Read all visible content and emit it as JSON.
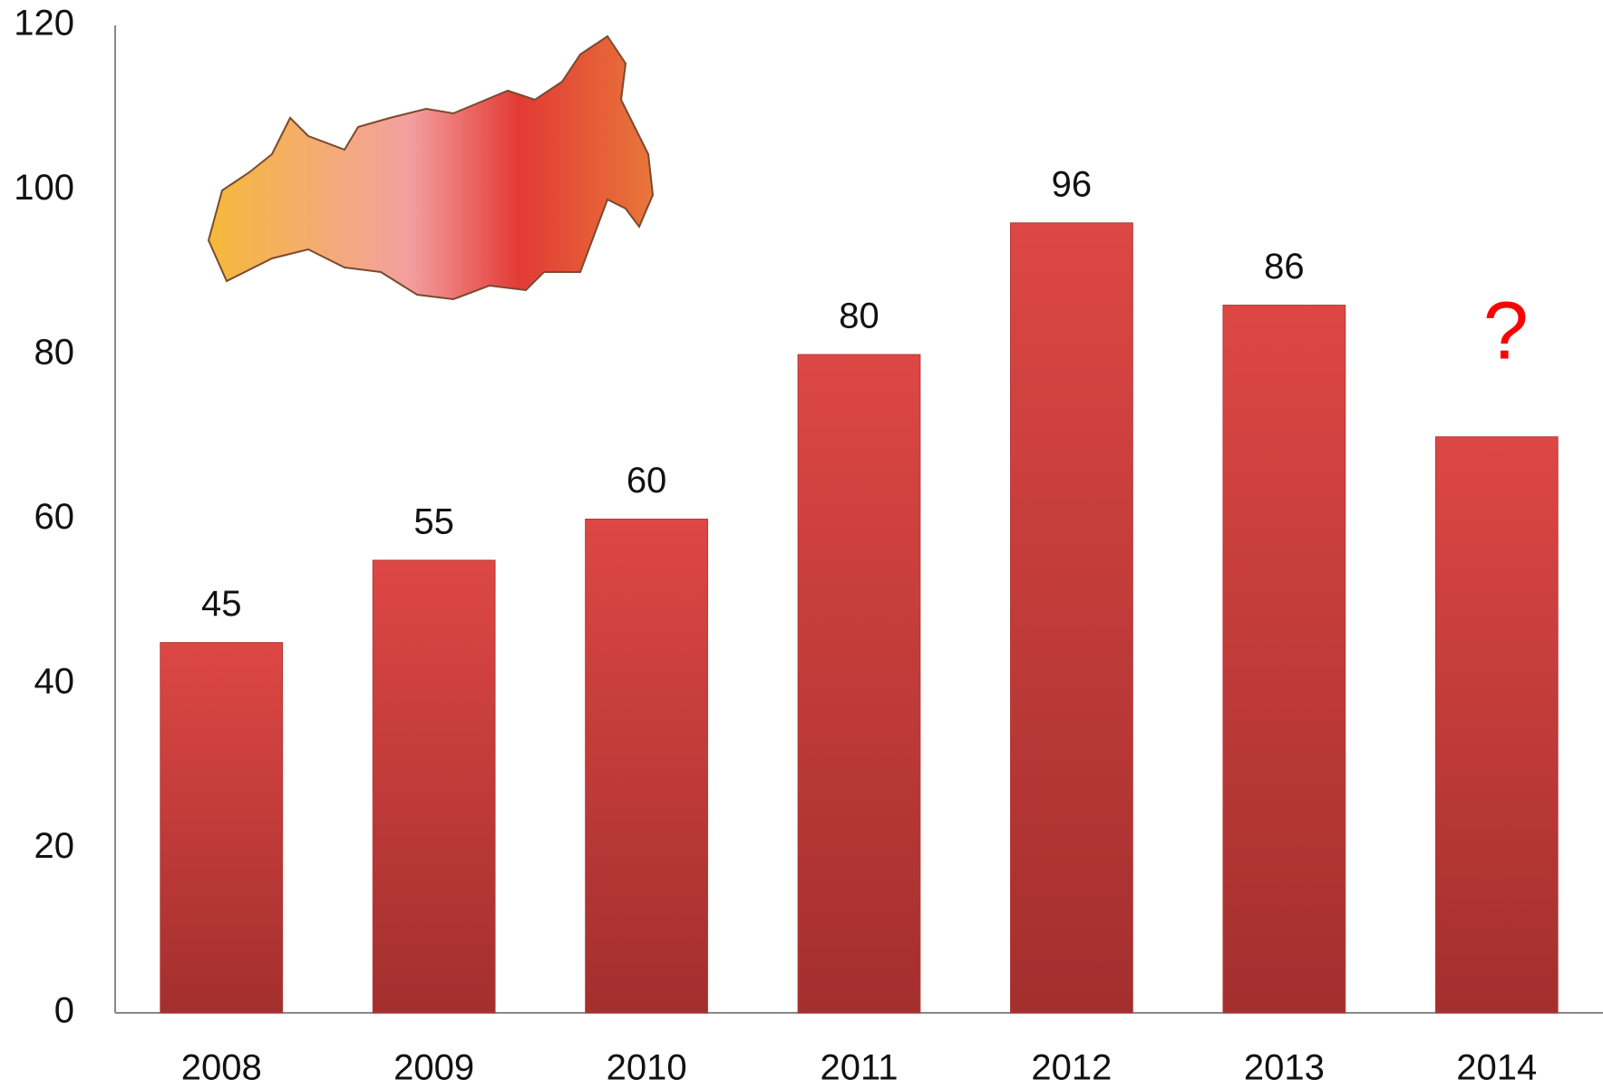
{
  "chart_data": {
    "type": "bar",
    "categories": [
      "2008",
      "2009",
      "2010",
      "2011",
      "2012",
      "2013",
      "2014"
    ],
    "values": [
      45,
      55,
      60,
      80,
      96,
      86,
      70
    ],
    "value_labels": [
      "45",
      "55",
      "60",
      "80",
      "96",
      "86",
      null
    ],
    "color": "#d64340",
    "annotation": {
      "text": "?",
      "color": "#ff0000"
    },
    "ylim": [
      0,
      120
    ],
    "yticks": [
      0,
      20,
      40,
      60,
      80,
      100,
      120
    ],
    "grid": false
  }
}
